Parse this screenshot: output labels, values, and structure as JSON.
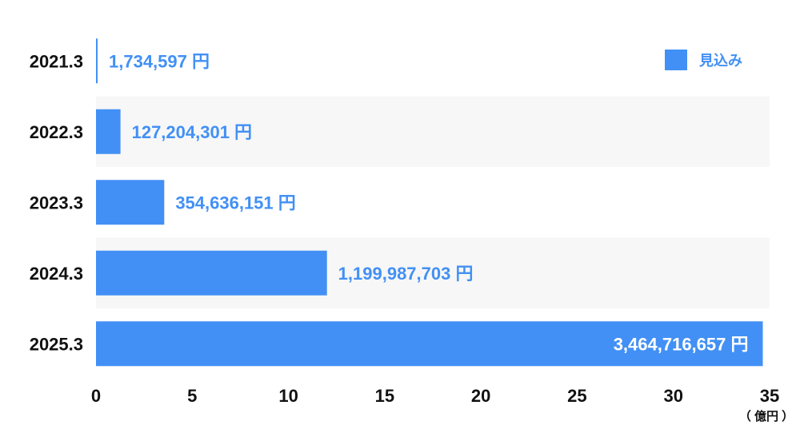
{
  "colors": {
    "bar": "#4290f5",
    "label_outside": "#4290f5",
    "label_inside": "#ffffff",
    "band_light": "#f7f7f7",
    "band_white": "#ffffff",
    "axis_text": "#111111"
  },
  "chart_data": {
    "type": "bar",
    "orientation": "horizontal",
    "categories": [
      "2021.3",
      "2022.3",
      "2023.3",
      "2024.3",
      "2025.3"
    ],
    "values": [
      0.01734597,
      1.27204301,
      3.54636151,
      11.99987703,
      34.64716657
    ],
    "value_labels": [
      "1,734,597 円",
      "127,204,301 円",
      "354,636,151 円",
      "1,199,987,703 円",
      "3,464,716,657 円"
    ],
    "x_ticks": [
      "0",
      "5",
      "10",
      "15",
      "20",
      "25",
      "30",
      "35"
    ],
    "xlim": [
      0,
      35
    ],
    "unit_label": "（ 億円 ）",
    "series": [
      {
        "name": "見込み",
        "color": "#4290f5"
      }
    ],
    "legend_position": "top-right",
    "grid": false
  }
}
